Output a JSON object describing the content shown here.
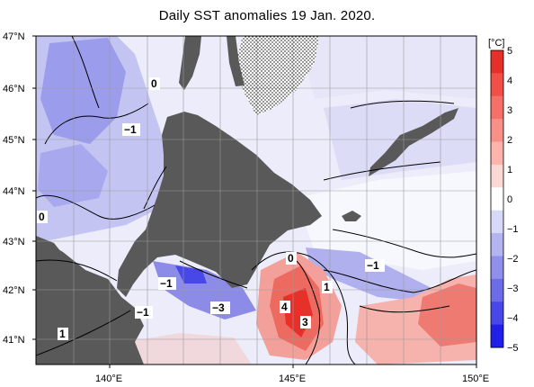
{
  "title": "Daily SST anomalies 19 Jan. 2020.",
  "map": {
    "lat_labels": [
      "47°N",
      "46°N",
      "45°N",
      "44°N",
      "43°N",
      "42°N",
      "41°N"
    ],
    "lon_labels": [
      "140°E",
      "145°E",
      "150°E"
    ],
    "contour_labels": [
      "0",
      "−1",
      "0",
      "−1",
      "−1",
      "−3",
      "0",
      "−1",
      "1",
      "4",
      "3",
      "1"
    ]
  },
  "colorbar": {
    "unit": "[°C]",
    "ticks": [
      "5",
      "4",
      "3",
      "2",
      "1",
      "0",
      "−1",
      "−2",
      "−3",
      "−4",
      "−5"
    ],
    "colors": [
      "#e8302a",
      "#f05048",
      "#f47068",
      "#f89088",
      "#fcb4ac",
      "#fcd8d4",
      "#ffffff",
      "#d8d8f8",
      "#b4b4f0",
      "#9090ec",
      "#6c6ce8",
      "#4848e8",
      "#2020e8"
    ]
  },
  "colors": {
    "land": "#595959",
    "sea_neutral": "#ffffff",
    "warm": "#f4a09a",
    "cool": "#b8b8f0"
  }
}
